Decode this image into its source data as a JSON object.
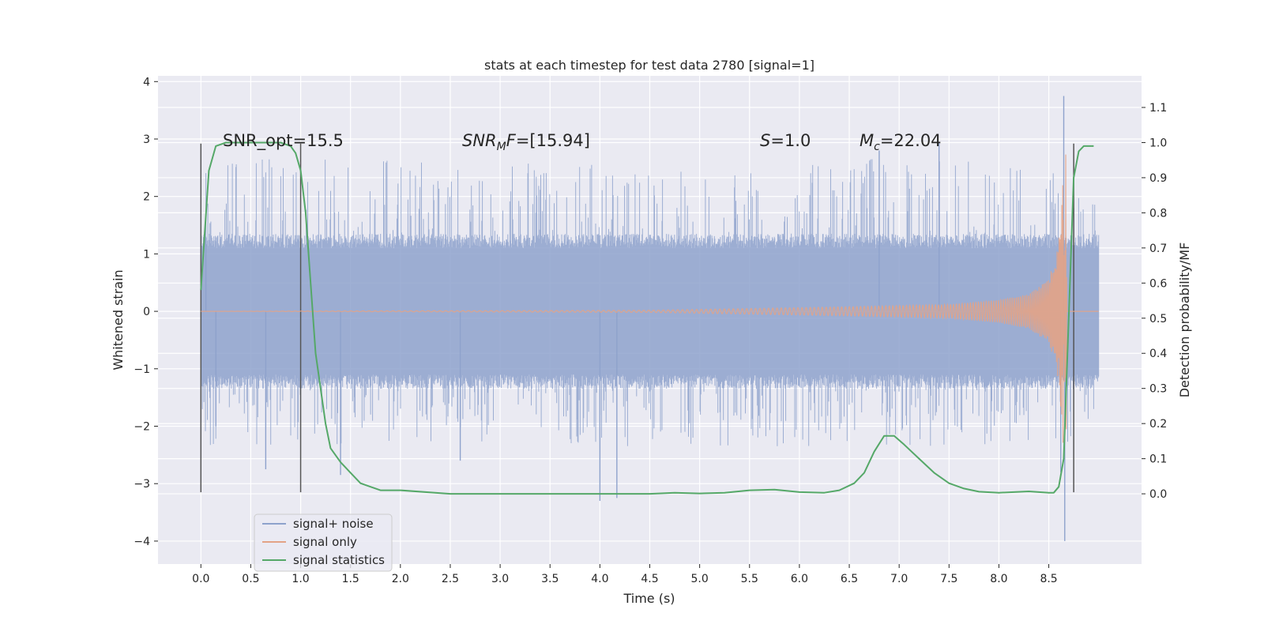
{
  "chart_data": {
    "type": "line",
    "title": "stats at each timestep for test data 2780 [signal=1]",
    "xlabel": "Time (s)",
    "ylabel_left": "Whitened strain",
    "ylabel_right": "Detection probability/MF",
    "xlim": [
      -0.43,
      9.43
    ],
    "ylim_left": [
      -4.4,
      4.1
    ],
    "ylim_right": [
      -0.2,
      1.19
    ],
    "x_ticks": [
      "0.0",
      "0.5",
      "1.0",
      "1.5",
      "2.0",
      "2.5",
      "3.0",
      "3.5",
      "4.0",
      "4.5",
      "5.0",
      "5.5",
      "6.0",
      "6.5",
      "7.0",
      "7.5",
      "8.0",
      "8.5"
    ],
    "y_ticks_left": [
      "−4",
      "−3",
      "−2",
      "−1",
      "0",
      "1",
      "2",
      "3",
      "4"
    ],
    "y_ticks_right": [
      "0.0",
      "0.1",
      "0.2",
      "0.3",
      "0.4",
      "0.5",
      "0.6",
      "0.7",
      "0.8",
      "0.9",
      "1.0",
      "1.1"
    ],
    "grid": true,
    "legend": {
      "location": "bottom-left",
      "entries": [
        {
          "label": "signal+ noise",
          "color": "#8ea2cc"
        },
        {
          "label": "signal only",
          "color": "#e3a386"
        },
        {
          "label": "signal statistics",
          "color": "#55a868"
        }
      ]
    },
    "annotations": [
      {
        "text": "SNR_opt=15.5"
      },
      {
        "text": "SNR_MF=[15.94]"
      },
      {
        "text": "S=1.0"
      },
      {
        "text": "M_c=22.04"
      }
    ],
    "vertical_markers": [
      {
        "x": 0.0,
        "y_range": [
          -3.15,
          2.92
        ]
      },
      {
        "x": 1.0,
        "y_range": [
          -3.15,
          2.92
        ]
      },
      {
        "x": 8.75,
        "y_range": [
          -3.15,
          2.92
        ]
      }
    ],
    "series": [
      {
        "name": "signal+ noise",
        "axis": "left",
        "color": "#8ea2cc",
        "description_range": [
          0.0,
          9.0
        ],
        "typical_band": [
          -1.1,
          1.1
        ],
        "notable_peaks": [
          {
            "x": 0.05,
            "y": 1.3
          },
          {
            "x": 0.15,
            "y": -2.0
          },
          {
            "x": 0.65,
            "y": -2.75
          },
          {
            "x": 1.4,
            "y": -2.85
          },
          {
            "x": 2.6,
            "y": -2.6
          },
          {
            "x": 4.0,
            "y": -3.3
          },
          {
            "x": 4.17,
            "y": -3.25
          },
          {
            "x": 6.8,
            "y": 2.8
          },
          {
            "x": 7.4,
            "y": 2.95
          },
          {
            "x": 8.62,
            "y": -2.8
          },
          {
            "x": 8.65,
            "y": 3.75
          },
          {
            "x": 8.66,
            "y": -4.0
          },
          {
            "x": 8.75,
            "y": 1.8
          }
        ]
      },
      {
        "name": "signal only",
        "axis": "left",
        "color": "#e3a386",
        "amplitude_envelope": {
          "x": [
            0.0,
            4.5,
            5.5,
            6.5,
            7.5,
            8.0,
            8.3,
            8.5,
            8.6,
            8.65,
            8.67,
            8.7,
            9.0
          ],
          "amp": [
            0.0,
            0.02,
            0.05,
            0.08,
            0.12,
            0.2,
            0.3,
            0.55,
            1.2,
            2.6,
            2.8,
            0.0,
            0.0
          ]
        }
      },
      {
        "name": "signal statistics",
        "axis": "right",
        "color": "#55a868",
        "x": [
          0.0,
          0.08,
          0.15,
          0.25,
          0.5,
          0.8,
          0.9,
          0.95,
          1.0,
          1.05,
          1.1,
          1.15,
          1.2,
          1.25,
          1.3,
          1.4,
          1.5,
          1.6,
          1.7,
          1.8,
          2.0,
          2.5,
          3.0,
          3.5,
          4.0,
          4.5,
          4.75,
          5.0,
          5.25,
          5.5,
          5.75,
          6.0,
          6.25,
          6.4,
          6.55,
          6.65,
          6.75,
          6.85,
          6.95,
          7.05,
          7.2,
          7.35,
          7.5,
          7.65,
          7.8,
          8.0,
          8.3,
          8.5,
          8.55,
          8.6,
          8.65,
          8.7,
          8.75,
          8.8,
          8.85,
          8.9,
          8.95
        ],
        "y": [
          0.58,
          0.92,
          0.99,
          1.0,
          1.0,
          1.0,
          0.99,
          0.97,
          0.92,
          0.8,
          0.6,
          0.4,
          0.3,
          0.2,
          0.13,
          0.09,
          0.06,
          0.03,
          0.02,
          0.01,
          0.01,
          0.0,
          0.0,
          0.0,
          0.0,
          0.0,
          0.003,
          0.001,
          0.003,
          0.01,
          0.012,
          0.005,
          0.003,
          0.01,
          0.03,
          0.06,
          0.12,
          0.165,
          0.165,
          0.14,
          0.1,
          0.06,
          0.03,
          0.015,
          0.006,
          0.003,
          0.007,
          0.003,
          0.003,
          0.02,
          0.1,
          0.5,
          0.9,
          0.975,
          0.99,
          0.99,
          0.99
        ]
      }
    ]
  }
}
